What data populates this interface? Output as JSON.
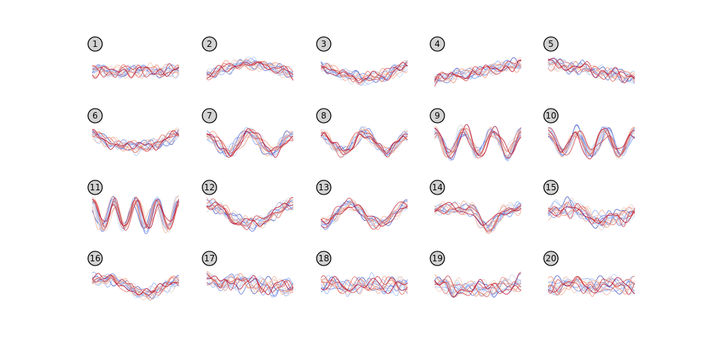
{
  "chart_data": {
    "type": "line",
    "panels": [
      {
        "label": "1",
        "shape": "flat"
      },
      {
        "label": "2",
        "shape": "hump"
      },
      {
        "label": "3",
        "shape": "valley"
      },
      {
        "label": "4",
        "shape": "rising"
      },
      {
        "label": "5",
        "shape": "falling"
      },
      {
        "label": "6",
        "shape": "u-shape"
      },
      {
        "label": "7",
        "shape": "two-peak"
      },
      {
        "label": "8",
        "shape": "two-peak"
      },
      {
        "label": "9",
        "shape": "three-peak"
      },
      {
        "label": "10",
        "shape": "three-peak"
      },
      {
        "label": "11",
        "shape": "four-peak"
      },
      {
        "label": "12",
        "shape": "wave"
      },
      {
        "label": "13",
        "shape": "wave-inverted"
      },
      {
        "label": "14",
        "shape": "deep-dip"
      },
      {
        "label": "15",
        "shape": "noisy-wave"
      },
      {
        "label": "16",
        "shape": "bump-then-dip"
      },
      {
        "label": "17",
        "shape": "noisy-falling"
      },
      {
        "label": "18",
        "shape": "noisy-flat"
      },
      {
        "label": "19",
        "shape": "noisy-dip"
      },
      {
        "label": "20",
        "shape": "noisy-flat"
      }
    ],
    "series_per_panel": 14,
    "colormap": [
      "#3b4cc0",
      "#7b9ff9",
      "#c0d4f5",
      "#f2cbb7",
      "#ee8468",
      "#b40426"
    ],
    "axes_visible": false,
    "grid": false
  },
  "colors": {
    "label_fill": "#d3d3d3",
    "label_stroke": "#000000",
    "background": "#ffffff"
  }
}
